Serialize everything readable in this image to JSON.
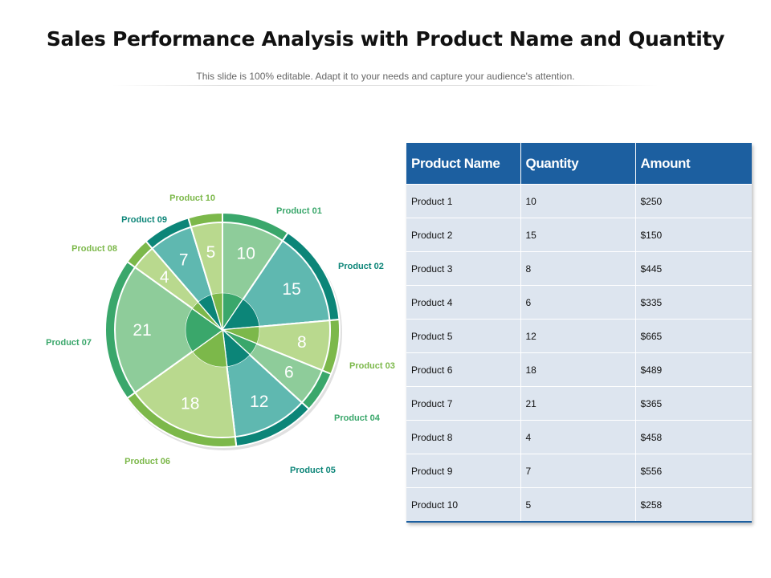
{
  "title": "Sales Performance Analysis with Product Name and Quantity",
  "subtitle": "This slide is 100% editable. Adapt it to your needs and capture your audience's attention.",
  "chart_data": {
    "type": "pie",
    "slices": [
      {
        "label": "Product 01",
        "value": 10,
        "fill": "#8ecc9a",
        "ring": "#3aa76b",
        "text": "#ffffff"
      },
      {
        "label": "Product 02",
        "value": 15,
        "fill": "#5fb8b0",
        "ring": "#0c8578",
        "text": "#ffffff"
      },
      {
        "label": "Product 03",
        "value": 8,
        "fill": "#b9d98e",
        "ring": "#7cb84a",
        "text": "#ffffff"
      },
      {
        "label": "Product 04",
        "value": 6,
        "fill": "#8ecc9a",
        "ring": "#3aa76b",
        "text": "#ffffff"
      },
      {
        "label": "Product 05",
        "value": 12,
        "fill": "#5fb8b0",
        "ring": "#0c8578",
        "text": "#ffffff"
      },
      {
        "label": "Product 06",
        "value": 18,
        "fill": "#b9d98e",
        "ring": "#7cb84a",
        "text": "#ffffff"
      },
      {
        "label": "Product 07",
        "value": 21,
        "fill": "#8ecc9a",
        "ring": "#3aa76b",
        "text": "#ffffff"
      },
      {
        "label": "Product 08",
        "value": 4,
        "fill": "#b9d98e",
        "ring": "#7cb84a",
        "text": "#ffffff"
      },
      {
        "label": "Product 09",
        "value": 7,
        "fill": "#5fb8b0",
        "ring": "#0c8578",
        "text": "#ffffff"
      },
      {
        "label": "Product 10",
        "value": 5,
        "fill": "#b9d98e",
        "ring": "#7cb84a",
        "text": "#ffffff"
      }
    ],
    "label_colors": {
      "Product 01": "#3aa76b",
      "Product 02": "#0c8578",
      "Product 03": "#7cb84a",
      "Product 04": "#3aa76b",
      "Product 05": "#0c8578",
      "Product 06": "#7cb84a",
      "Product 07": "#3aa76b",
      "Product 08": "#7cb84a",
      "Product 09": "#0c8578",
      "Product 10": "#7cb84a"
    }
  },
  "table": {
    "headers": [
      "Product Name",
      "Quantity",
      "Amount"
    ],
    "rows": [
      [
        "Product 1",
        "10",
        "$250"
      ],
      [
        "Product 2",
        "15",
        "$150"
      ],
      [
        "Product 3",
        "8",
        "$445"
      ],
      [
        "Product 4",
        "6",
        "$335"
      ],
      [
        "Product 5",
        "12",
        "$665"
      ],
      [
        "Product 6",
        "18",
        "$489"
      ],
      [
        "Product 7",
        "21",
        "$365"
      ],
      [
        "Product 8",
        "4",
        "$458"
      ],
      [
        "Product 9",
        "7",
        "$556"
      ],
      [
        "Product 10",
        "5",
        "$258"
      ]
    ]
  }
}
